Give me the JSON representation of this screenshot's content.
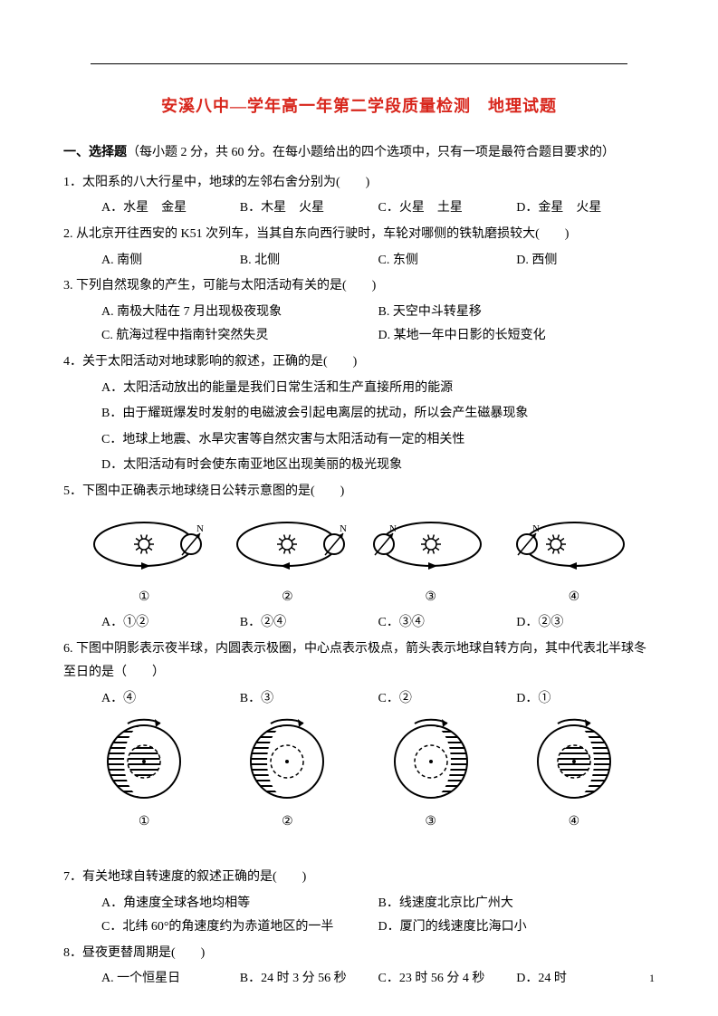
{
  "title": "安溪八中—学年高一年第二学段质量检测　地理试题",
  "section1": {
    "head_bold": "一、选择题",
    "head_rest": "（每小题 2 分，共 60 分。在每小题给出的四个选项中，只有一项是最符合题目要求的）"
  },
  "q1": {
    "stem": "1．太阳系的八大行星中，地球的左邻右舍分别为(　　)",
    "A": "A．水星　金星",
    "B": "B．木星　火星",
    "C": "C．火星　土星",
    "D": "D．金星　火星"
  },
  "q2": {
    "stem": "2. 从北京开往西安的 K51 次列车，当其自东向西行驶时，车轮对哪侧的铁轨磨损较大(　　)",
    "A": "A. 南侧",
    "B": "B. 北侧",
    "C": "C. 东侧",
    "D": "D. 西侧"
  },
  "q3": {
    "stem": "3. 下列自然现象的产生，可能与太阳活动有关的是(　　)",
    "A": "A. 南极大陆在 7 月出现极夜现象",
    "B": "B. 天空中斗转星移",
    "C": "C. 航海过程中指南针突然失灵",
    "D": "D. 某地一年中日影的长短变化"
  },
  "q4": {
    "stem": "4．关于太阳活动对地球影响的叙述，正确的是(　　)",
    "A": "A．太阳活动放出的能量是我们日常生活和生产直接所用的能源",
    "B": "B．由于耀斑爆发时发射的电磁波会引起电离层的扰动，所以会产生磁暴现象",
    "C": "C．地球上地震、水旱灾害等自然灾害与太阳活动有一定的相关性",
    "D": "D．太阳活动有时会使东南亚地区出现美丽的极光现象"
  },
  "q5": {
    "stem": "5．下图中正确表示地球绕日公转示意图的是(　　)",
    "A": "A．①②",
    "B": "B．②④",
    "C": "C．③④",
    "D": "D．②③",
    "labels": [
      "①",
      "②",
      "③",
      "④"
    ],
    "diagram": {
      "type": "ellipse-orbit",
      "stroke": "#000000",
      "fill_sun": "#000000",
      "count": 4,
      "arrow_ccw": [
        true,
        false,
        true,
        false
      ],
      "earth_right": [
        true,
        true,
        false,
        false
      ],
      "sun_center": [
        true,
        true,
        true,
        false
      ]
    }
  },
  "q6": {
    "stem": "6. 下图中阴影表示夜半球，内圆表示极圈，中心点表示极点，箭头表示地球自转方向，其中代表北半球冬至日的是（　　）",
    "A": "A．④",
    "B": "B．③",
    "C": "C．②",
    "D": "D．①",
    "labels": [
      "①",
      "②",
      "③",
      "④"
    ],
    "diagram": {
      "type": "polar-circle",
      "stroke": "#000000",
      "hatch_fill": "#000000",
      "count": 4,
      "shade_left": [
        true,
        true,
        false,
        false
      ],
      "inner_full_day": [
        false,
        true,
        true,
        false
      ],
      "inner_full_night": [
        true,
        false,
        false,
        true
      ]
    }
  },
  "q7": {
    "stem": "7．有关地球自转速度的叙述正确的是(　　)",
    "A": "A．角速度全球各地均相等",
    "B": "B．线速度北京比广州大",
    "C": "C．北纬 60°的角速度约为赤道地区的一半",
    "D": "D．厦门的线速度比海口小"
  },
  "q8": {
    "stem": "8．昼夜更替周期是(　　)",
    "A": "A. 一个恒星日",
    "B": "B．24 时 3 分 56 秒",
    "C": "C．23 时 56 分 4 秒",
    "D": "D．24 时"
  },
  "pagenum": "1"
}
